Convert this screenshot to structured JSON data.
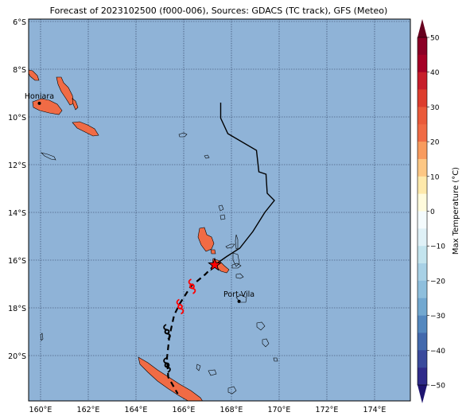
{
  "map": {
    "title": "Forecast of 2023102500 (f000-006), Sources: GDACS (TC track), GFS (Meteo)",
    "lon_range": [
      159.5,
      175.5
    ],
    "lat_range": [
      -21.9,
      -5.9
    ],
    "lat_ticks": [
      {
        "value": -6,
        "label": "6°S"
      },
      {
        "value": -8,
        "label": "8°S"
      },
      {
        "value": -10,
        "label": "10°S"
      },
      {
        "value": -12,
        "label": "12°S"
      },
      {
        "value": -14,
        "label": "14°S"
      },
      {
        "value": -16,
        "label": "16°S"
      },
      {
        "value": -18,
        "label": "18°S"
      },
      {
        "value": -20,
        "label": "20°S"
      }
    ],
    "lon_ticks": [
      {
        "value": 160,
        "label": "160°E"
      },
      {
        "value": 162,
        "label": "162°E"
      },
      {
        "value": 164,
        "label": "164°E"
      },
      {
        "value": 166,
        "label": "166°E"
      },
      {
        "value": 168,
        "label": "168°E"
      },
      {
        "value": 170,
        "label": "170°E"
      },
      {
        "value": 172,
        "label": "172°E"
      },
      {
        "value": 174,
        "label": "174°E"
      }
    ],
    "colors": {
      "ocean": "#8fb3d7",
      "land_fill": "#f06b45",
      "grid": "#2b3a5a",
      "track_observed": "#000000",
      "track_forecast": "#000000",
      "current_position": "#ff0000",
      "symbol_forecast": "#ff0000",
      "symbol_past": "#000000"
    },
    "cities": [
      {
        "name": "Honiara",
        "lon": 159.95,
        "lat": -9.43
      },
      {
        "name": "Port-Vila",
        "lon": 168.32,
        "lat": -17.73
      }
    ],
    "track_observed": [
      [
        167.55,
        -9.4
      ],
      [
        167.55,
        -10.05
      ],
      [
        167.85,
        -10.7
      ],
      [
        169.05,
        -11.4
      ],
      [
        169.15,
        -12.3
      ],
      [
        169.45,
        -12.4
      ],
      [
        169.5,
        -13.2
      ],
      [
        169.8,
        -13.5
      ],
      [
        169.4,
        -14.0
      ],
      [
        168.9,
        -14.8
      ],
      [
        168.35,
        -15.5
      ],
      [
        167.8,
        -15.85
      ],
      [
        167.3,
        -16.2
      ]
    ],
    "track_forecast": [
      [
        167.3,
        -16.2
      ],
      [
        166.9,
        -16.6
      ],
      [
        166.3,
        -17.1
      ],
      [
        165.85,
        -17.8
      ],
      [
        165.6,
        -18.3
      ],
      [
        165.4,
        -19.2
      ],
      [
        165.3,
        -20.1
      ],
      [
        165.35,
        -20.9
      ],
      [
        165.75,
        -21.6
      ]
    ],
    "current_position": {
      "lon": 167.3,
      "lat": -16.2
    },
    "storm_symbols": [
      {
        "lon": 166.35,
        "lat": -17.1,
        "kind": "forecast"
      },
      {
        "lon": 165.85,
        "lat": -17.95,
        "kind": "forecast"
      },
      {
        "lon": 165.3,
        "lat": -19.0,
        "kind": "past"
      },
      {
        "lon": 165.3,
        "lat": -20.4,
        "kind": "past"
      }
    ]
  },
  "colorbar": {
    "label": "Max Temperature (°C)",
    "vmin": -50,
    "vmax": 50,
    "ticks": [
      {
        "value": 50,
        "label": "50"
      },
      {
        "value": 40,
        "label": "40"
      },
      {
        "value": 30,
        "label": "30"
      },
      {
        "value": 20,
        "label": "20"
      },
      {
        "value": 10,
        "label": "10"
      },
      {
        "value": 0,
        "label": "0"
      },
      {
        "value": -10,
        "label": "−10"
      },
      {
        "value": -20,
        "label": "−20"
      },
      {
        "value": -30,
        "label": "−30"
      },
      {
        "value": -40,
        "label": "−40"
      },
      {
        "value": -50,
        "label": "−50"
      }
    ],
    "bands": [
      {
        "from": 45,
        "to": 50,
        "color": "#8b0026"
      },
      {
        "from": 40,
        "to": 45,
        "color": "#a50026"
      },
      {
        "from": 35,
        "to": 40,
        "color": "#c71e2b"
      },
      {
        "from": 30,
        "to": 35,
        "color": "#dd3d2d"
      },
      {
        "from": 25,
        "to": 30,
        "color": "#ea5a3a"
      },
      {
        "from": 20,
        "to": 25,
        "color": "#f06b45"
      },
      {
        "from": 15,
        "to": 20,
        "color": "#f89b5e"
      },
      {
        "from": 10,
        "to": 15,
        "color": "#fdc784"
      },
      {
        "from": 5,
        "to": 10,
        "color": "#fee9ab"
      },
      {
        "from": 0,
        "to": 5,
        "color": "#fffbdc"
      },
      {
        "from": -5,
        "to": 0,
        "color": "#f4fbfd"
      },
      {
        "from": -10,
        "to": -5,
        "color": "#dff1f7"
      },
      {
        "from": -15,
        "to": -10,
        "color": "#c3e4ee"
      },
      {
        "from": -20,
        "to": -15,
        "color": "#a8d1e6"
      },
      {
        "from": -25,
        "to": -20,
        "color": "#8ebfdd"
      },
      {
        "from": -30,
        "to": -25,
        "color": "#72a8d0"
      },
      {
        "from": -35,
        "to": -30,
        "color": "#5488bf"
      },
      {
        "from": -40,
        "to": -35,
        "color": "#4269ad"
      },
      {
        "from": -45,
        "to": -40,
        "color": "#3a4a9c"
      },
      {
        "from": -50,
        "to": -45,
        "color": "#2f2b8a"
      }
    ],
    "over_color": "#67001f",
    "under_color": "#1e1470"
  }
}
